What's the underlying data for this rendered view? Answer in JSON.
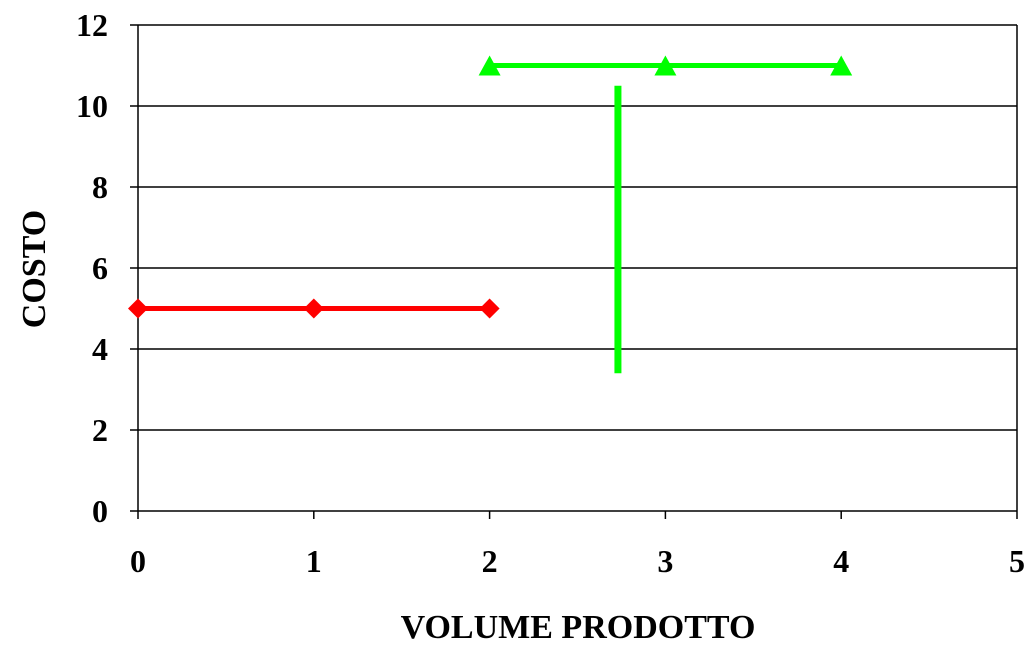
{
  "chart_data": {
    "type": "line",
    "title": "",
    "xlabel": "VOLUME PRODOTTO",
    "ylabel": "COSTO",
    "xlim": [
      0,
      5
    ],
    "ylim": [
      0,
      12
    ],
    "xticks": [
      0,
      1,
      2,
      3,
      4,
      5
    ],
    "yticks": [
      0,
      2,
      4,
      6,
      8,
      10,
      12
    ],
    "grid": "horizontal",
    "legend": "none",
    "series": [
      {
        "marker": "diamond",
        "color": "#ff0000",
        "x": [
          0,
          1,
          2
        ],
        "y": [
          5,
          5,
          5
        ]
      },
      {
        "marker": "triangle",
        "color": "#00ff00",
        "x": [
          2,
          3,
          4
        ],
        "y": [
          11,
          11,
          11
        ]
      }
    ],
    "annotations": [
      {
        "type": "vertical-line",
        "color": "#00ff00",
        "x": 2.73,
        "y_from": 3.4,
        "y_to": 10.5
      }
    ]
  }
}
